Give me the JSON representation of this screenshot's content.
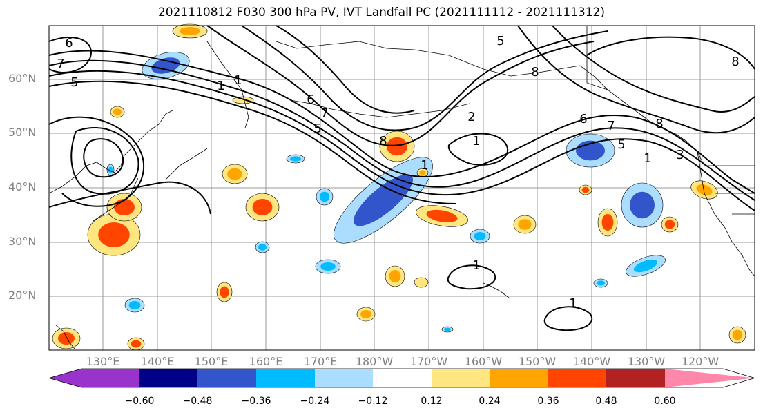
{
  "title": "2021110812 F030 300 hPa PV, IVT Landfall PC (2021111112 - 2021111312)",
  "lat_labels": [
    "60°N",
    "50°N",
    "40°N",
    "30°N",
    "20°N"
  ],
  "lon_labels": [
    "130°E",
    "140°E",
    "150°E",
    "160°E",
    "170°E",
    "180°W",
    "170°W",
    "160°W",
    "150°W",
    "140°W",
    "130°W",
    "120°W"
  ],
  "colorbar": {
    "labels": [
      "−0.60",
      "−0.48",
      "−0.36",
      "−0.24",
      "−0.12",
      "0.12",
      "0.24",
      "0.36",
      "0.48",
      "0.60"
    ],
    "colors": [
      "#9933CC",
      "#000088",
      "#3355CC",
      "#00BBFF",
      "#AADDFF",
      "#FFFFFF",
      "#FFE680",
      "#FFA500",
      "#FF4500",
      "#B22222",
      "#FF88AA"
    ]
  },
  "pv_contour_labels": [
    "6",
    "7",
    "5",
    "1",
    "1",
    "8",
    "6",
    "7",
    "5",
    "1",
    "2",
    "1",
    "8",
    "6",
    "7",
    "8",
    "5",
    "3",
    "1",
    "1",
    "1",
    "8",
    "5"
  ]
}
